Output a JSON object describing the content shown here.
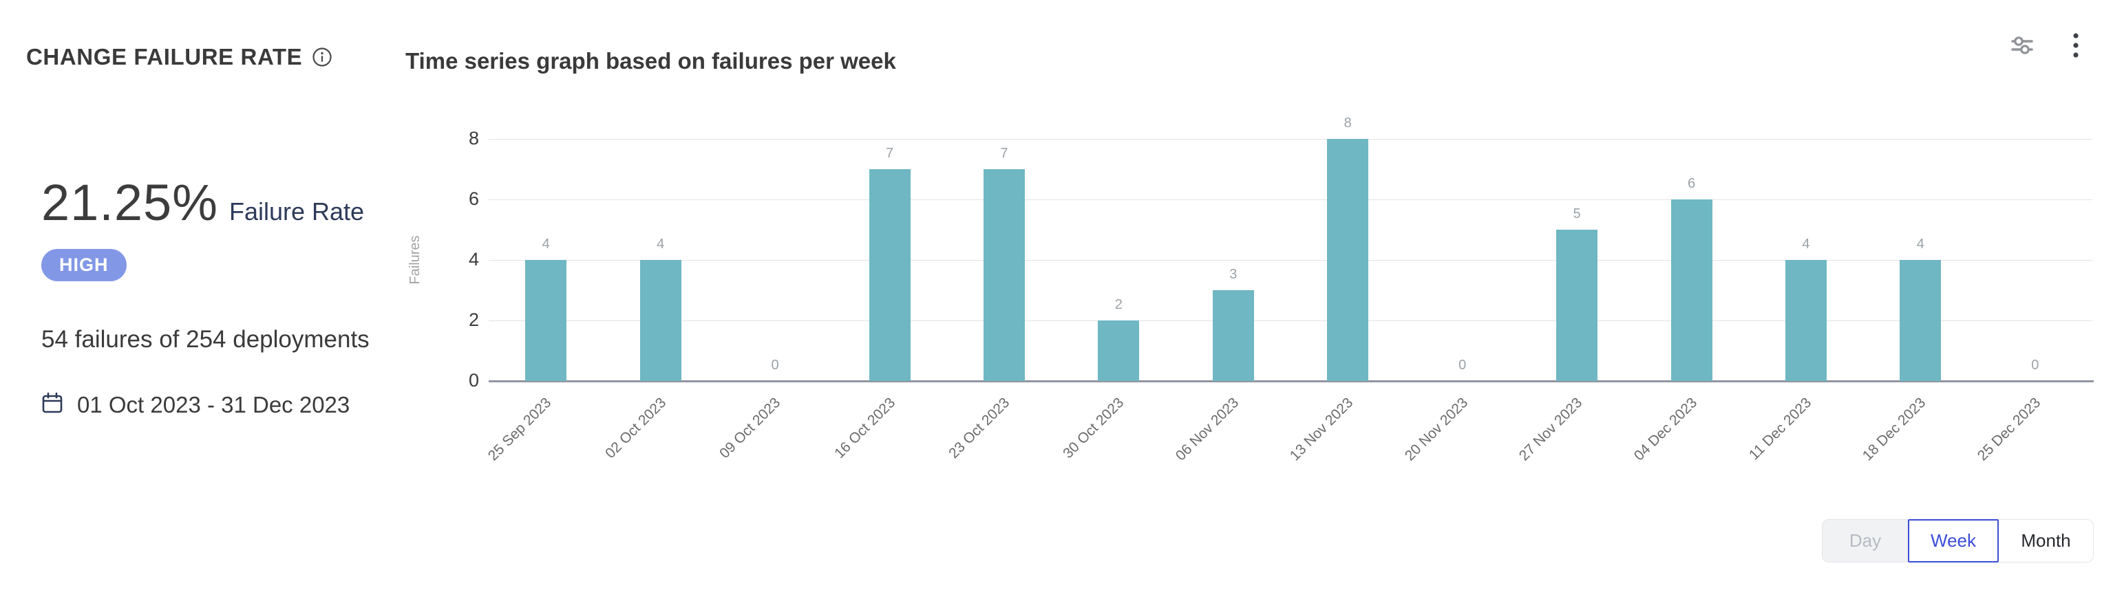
{
  "header": {
    "title": "CHANGE FAILURE RATE",
    "subtitle": "Time series graph based on failures per week"
  },
  "stats": {
    "failure_rate": "21.25%",
    "failure_rate_label": "Failure Rate",
    "severity_badge": "HIGH",
    "summary": "54 failures of 254 deployments",
    "date_range": "01 Oct 2023 - 31 Dec 2023"
  },
  "icons": {
    "info": "info-icon",
    "settings": "sliders-icon",
    "menu": "kebab-menu-icon",
    "calendar": "calendar-icon"
  },
  "chart_data": {
    "type": "bar",
    "title": "Time series graph based on failures per week",
    "categories": [
      "25 Sep 2023",
      "02 Oct 2023",
      "09 Oct 2023",
      "16 Oct 2023",
      "23 Oct 2023",
      "30 Oct 2023",
      "06 Nov 2023",
      "13 Nov 2023",
      "20 Nov 2023",
      "27 Nov 2023",
      "04 Dec 2023",
      "11 Dec 2023",
      "18 Dec 2023",
      "25 Dec 2023"
    ],
    "values": [
      4,
      4,
      0,
      7,
      7,
      2,
      3,
      8,
      0,
      5,
      6,
      4,
      4,
      0
    ],
    "xlabel": "",
    "ylabel": "Failures",
    "yticks": [
      0,
      2,
      4,
      6,
      8
    ],
    "ylim": [
      0,
      8
    ],
    "grid": "horizontal",
    "bar_color": "#6eb7c3",
    "value_label_color": "#9ba1a6",
    "legend": "none"
  },
  "toggle": {
    "options": [
      {
        "label": "Day",
        "state": "disabled"
      },
      {
        "label": "Week",
        "state": "selected"
      },
      {
        "label": "Month",
        "state": "default"
      }
    ],
    "selected": "Week"
  },
  "colors": {
    "bar": "#6eb7c3",
    "badge_high": "#8297e6",
    "accent_blue": "#3b4dd8",
    "navy_text": "#2e3a59",
    "dark_text": "#3a3a3a",
    "muted_text": "#9ba1a6",
    "gridline": "#e4e4e4",
    "baseline": "#9195a0"
  }
}
